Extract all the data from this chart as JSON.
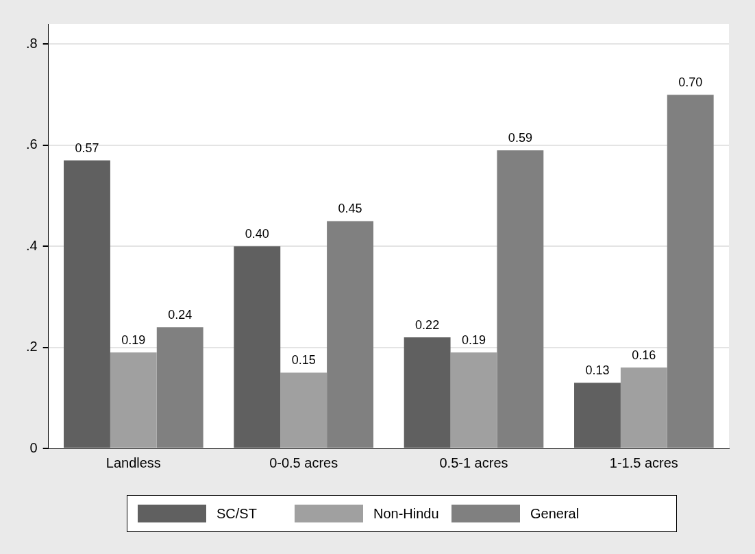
{
  "chart_data": {
    "type": "bar",
    "categories": [
      "Landless",
      "0-0.5 acres",
      "0.5-1 acres",
      "1-1.5 acres"
    ],
    "series": [
      {
        "name": "SC/ST",
        "color": "#606060",
        "values": [
          0.57,
          0.4,
          0.22,
          0.13
        ],
        "value_labels": [
          "0.57",
          "0.40",
          "0.22",
          "0.13"
        ]
      },
      {
        "name": "Non-Hindu",
        "color": "#a0a0a0",
        "values": [
          0.19,
          0.15,
          0.19,
          0.16
        ],
        "value_labels": [
          "0.19",
          "0.15",
          "0.19",
          "0.16"
        ]
      },
      {
        "name": "General",
        "color": "#808080",
        "values": [
          0.24,
          0.45,
          0.59,
          0.7
        ],
        "value_labels": [
          "0.24",
          "0.45",
          "0.59",
          "0.70"
        ]
      }
    ],
    "ylim": [
      0,
      0.84
    ],
    "yticks": [
      0,
      {
        "value": 0.2,
        "label": ".2"
      },
      {
        "value": 0.4,
        "label": ".4"
      },
      {
        "value": 0.6,
        "label": ".6"
      },
      {
        "value": 0.8,
        "label": ".8"
      }
    ],
    "grid": "y",
    "legend": "bottom"
  }
}
